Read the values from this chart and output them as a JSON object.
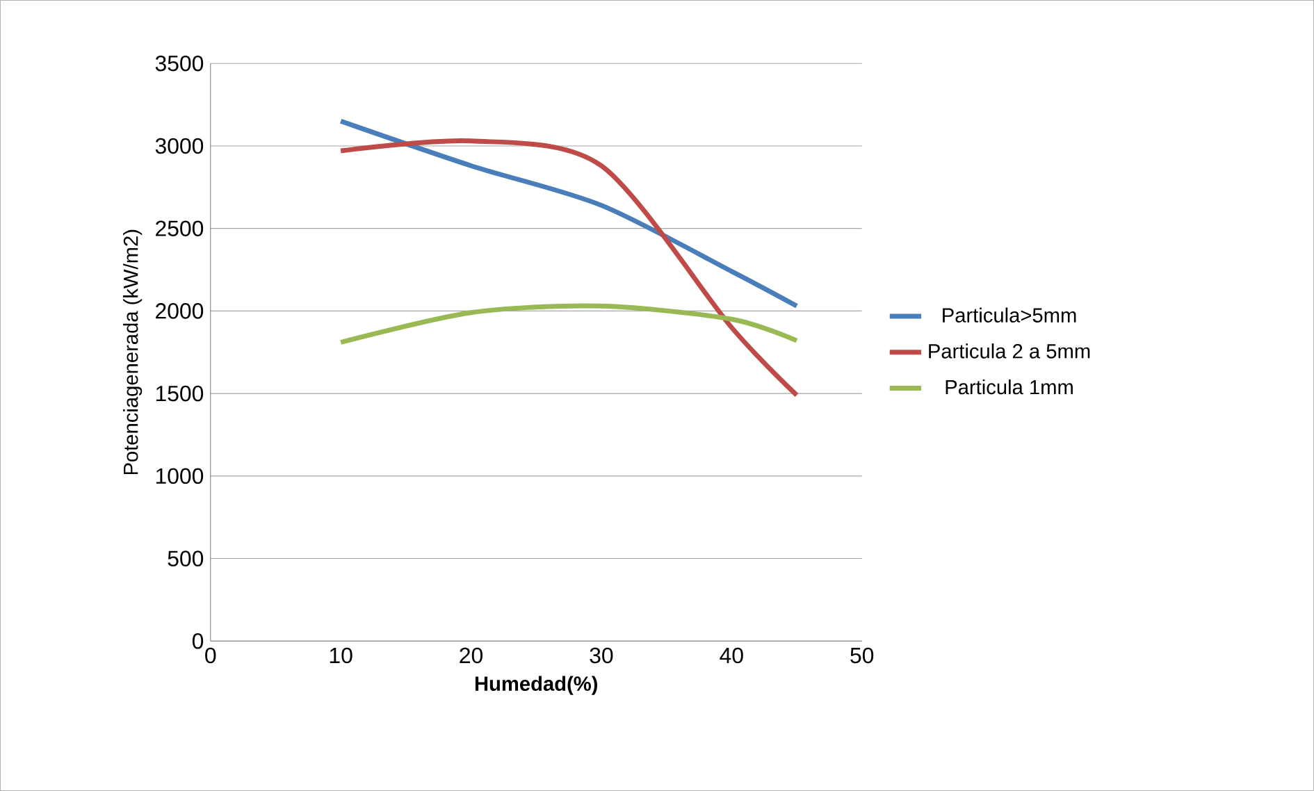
{
  "chart_data": {
    "type": "line",
    "xlabel": "Humedad(%)",
    "ylabel": "Potenciagenerada (kW/m2)",
    "x": [
      10,
      20,
      30,
      40,
      45
    ],
    "series": [
      {
        "name": "Particula>5mm",
        "color": "#4a7ebb",
        "values": [
          3150,
          2880,
          2640,
          2240,
          2030
        ]
      },
      {
        "name": "Particula 2 a 5mm",
        "color": "#be4b48",
        "values": [
          2970,
          3030,
          2880,
          1900,
          1490
        ]
      },
      {
        "name": "Particula 1mm",
        "color": "#98b954",
        "values": [
          1810,
          1990,
          2030,
          1950,
          1820
        ]
      }
    ],
    "xlim": [
      0,
      50
    ],
    "xticks": [
      0,
      10,
      20,
      30,
      40,
      50
    ],
    "ylim": [
      0,
      3500
    ],
    "yticks": [
      0,
      500,
      1000,
      1500,
      2000,
      2500,
      3000,
      3500
    ],
    "grid": "y",
    "legend": "right",
    "marker": "none",
    "line_style": "solid"
  }
}
